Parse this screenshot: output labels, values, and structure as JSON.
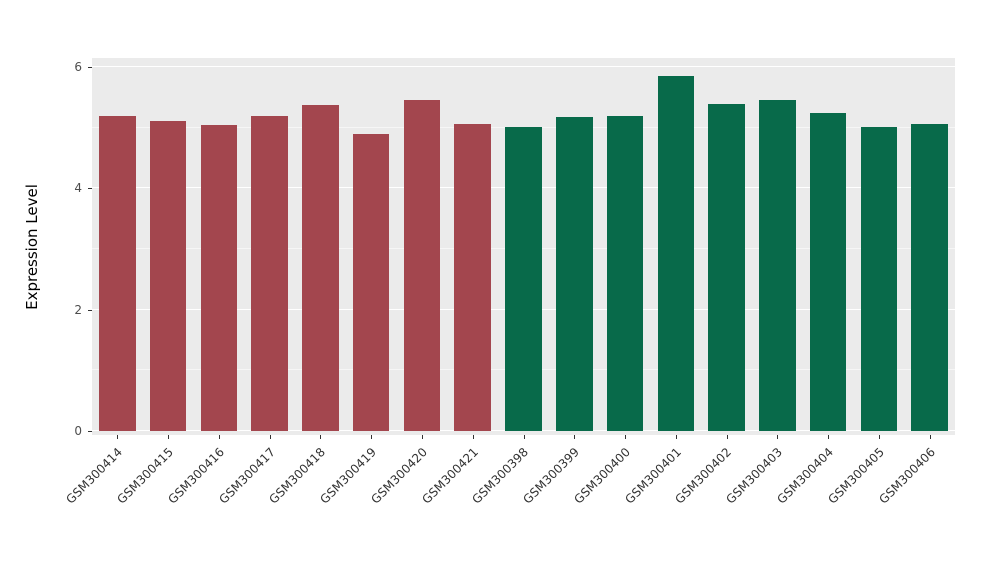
{
  "figure": {
    "background": "#FFFFFF",
    "panel_background": "#EBEBEB",
    "gridline_color": "#FFFFFF",
    "axis_text_color": "#4D4D4D",
    "bar_color_left_group": "#A3464E",
    "bar_color_right_group": "#086A4A"
  },
  "chart_data": {
    "type": "bar",
    "title": "",
    "xlabel": "",
    "ylabel": "Expression Level",
    "ylim": [
      0,
      6
    ],
    "yticks": [
      0,
      2,
      4,
      6
    ],
    "yticks_minor": [
      1,
      3,
      5
    ],
    "grid": true,
    "legend_position": "none",
    "categories": [
      "GSM300414",
      "GSM300415",
      "GSM300416",
      "GSM300417",
      "GSM300418",
      "GSM300419",
      "GSM300420",
      "GSM300421",
      "GSM300398",
      "GSM300399",
      "GSM300400",
      "GSM300401",
      "GSM300402",
      "GSM300403",
      "GSM300404",
      "GSM300405",
      "GSM300406"
    ],
    "values": [
      5.2,
      5.11,
      5.04,
      5.2,
      5.37,
      4.89,
      5.46,
      5.07,
      5.01,
      5.17,
      5.19,
      5.85,
      5.4,
      5.45,
      5.24,
      5.01,
      5.06
    ],
    "colors": [
      "#A3464E",
      "#A3464E",
      "#A3464E",
      "#A3464E",
      "#A3464E",
      "#A3464E",
      "#A3464E",
      "#A3464E",
      "#086A4A",
      "#086A4A",
      "#086A4A",
      "#086A4A",
      "#086A4A",
      "#086A4A",
      "#086A4A",
      "#086A4A",
      "#086A4A"
    ]
  }
}
